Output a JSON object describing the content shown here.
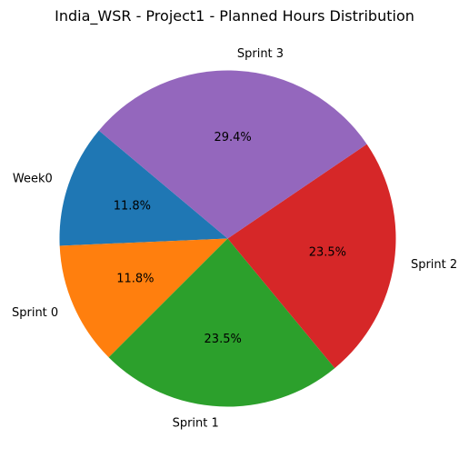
{
  "chart_data": {
    "type": "pie",
    "title": "India_WSR - Project1 - Planned Hours Distribution",
    "categories": [
      "Week0",
      "Sprint 0",
      "Sprint 1",
      "Sprint 2",
      "Sprint 3"
    ],
    "values": [
      11.8,
      11.8,
      23.5,
      23.5,
      29.4
    ],
    "value_labels": [
      "11.8%",
      "11.8%",
      "23.5%",
      "23.5%",
      "29.4%"
    ],
    "colors": [
      "#1f77b4",
      "#ff7f0e",
      "#2ca02c",
      "#d62728",
      "#9467bd"
    ],
    "start_angle_deg": 140,
    "direction": "counterclockwise"
  }
}
